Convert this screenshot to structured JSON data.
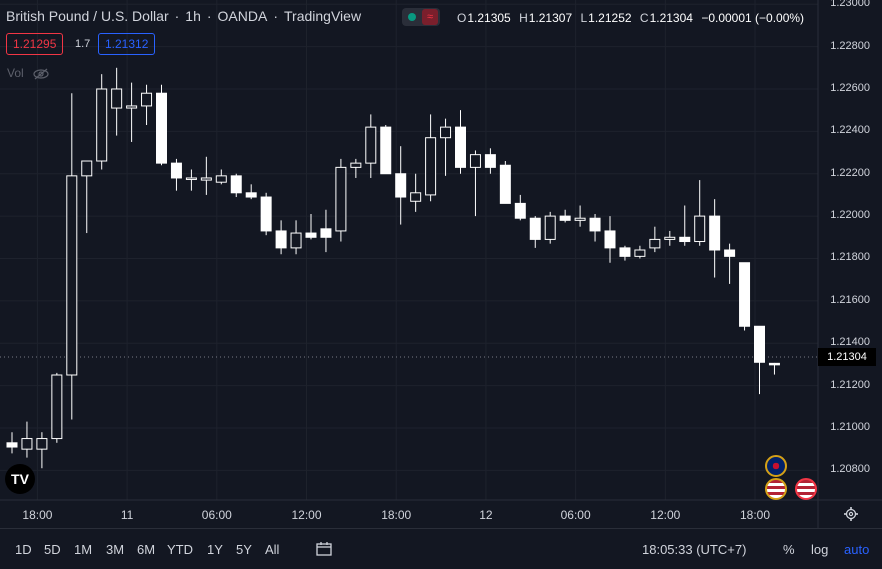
{
  "header": {
    "symbol": "British Pound / U.S. Dollar",
    "sep1": "·",
    "interval": "1h",
    "sep2": "·",
    "broker": "OANDA",
    "sep3": "·",
    "platform": "TradingView",
    "wave_symbol": "≈"
  },
  "ohlc": {
    "o_label": "O",
    "o_value": "1.21305",
    "h_label": "H",
    "h_value": "1.21307",
    "l_label": "L",
    "l_value": "1.21252",
    "c_label": "C",
    "c_value": "1.21304",
    "change": "−0.00001 (−0.00%)"
  },
  "trade": {
    "sell_price": "1.21295",
    "spread": "1.7",
    "buy_price": "1.21312"
  },
  "vol_label": "Vol",
  "price_axis": {
    "labels": [
      "1.23000",
      "1.22800",
      "1.22600",
      "1.22400",
      "1.22200",
      "1.22000",
      "1.21800",
      "1.21600",
      "1.21400",
      "1.21200",
      "1.21000",
      "1.20800"
    ],
    "current": "1.21304"
  },
  "time_axis": [
    "18:00",
    "11",
    "06:00",
    "12:00",
    "18:00",
    "12",
    "06:00",
    "12:00",
    "18:00"
  ],
  "logo_text": "TV",
  "bottom": {
    "ranges": [
      "1D",
      "5D",
      "1M",
      "3M",
      "6M",
      "YTD",
      "1Y",
      "5Y",
      "All"
    ],
    "clock": "18:05:33 (UTC+7)",
    "percent": "%",
    "log": "log",
    "auto": "auto"
  },
  "colors": {
    "background": "#131722",
    "candle": "#ffffff",
    "accent": "#2962ff",
    "sell": "#f23645",
    "live": "#089981"
  },
  "chart_data": {
    "type": "candlestick",
    "ylim": [
      1.2066,
      1.2302
    ],
    "candles": [
      [
        1.2093,
        1.2098,
        1.2088,
        1.2091
      ],
      [
        1.209,
        1.2103,
        1.2086,
        1.2095
      ],
      [
        1.209,
        1.2098,
        1.2081,
        1.2095
      ],
      [
        1.2095,
        1.2126,
        1.2093,
        1.2125
      ],
      [
        1.2125,
        1.2258,
        1.2104,
        1.2219
      ],
      [
        1.2219,
        1.2225,
        1.2192,
        1.2226
      ],
      [
        1.2226,
        1.2267,
        1.2222,
        1.226
      ],
      [
        1.2251,
        1.227,
        1.2238,
        1.226
      ],
      [
        1.2251,
        1.2263,
        1.2235,
        1.2252
      ],
      [
        1.2252,
        1.2262,
        1.2243,
        1.2258
      ],
      [
        1.2258,
        1.2262,
        1.2224,
        1.2225
      ],
      [
        1.2225,
        1.2227,
        1.2212,
        1.2218
      ],
      [
        1.2218,
        1.2222,
        1.2212,
        1.2218
      ],
      [
        1.2217,
        1.2228,
        1.221,
        1.2218
      ],
      [
        1.2216,
        1.2222,
        1.2215,
        1.2219
      ],
      [
        1.2219,
        1.222,
        1.2209,
        1.2211
      ],
      [
        1.2211,
        1.2215,
        1.2208,
        1.2209
      ],
      [
        1.2209,
        1.2211,
        1.2191,
        1.2193
      ],
      [
        1.2193,
        1.2198,
        1.2182,
        1.2185
      ],
      [
        1.2185,
        1.2198,
        1.2182,
        1.2192
      ],
      [
        1.2192,
        1.2201,
        1.2189,
        1.219
      ],
      [
        1.2194,
        1.2203,
        1.2183,
        1.219
      ],
      [
        1.2193,
        1.2227,
        1.2188,
        1.2223
      ],
      [
        1.2223,
        1.2227,
        1.2218,
        1.2225
      ],
      [
        1.2225,
        1.2248,
        1.2218,
        1.2242
      ],
      [
        1.2242,
        1.2243,
        1.222,
        1.222
      ],
      [
        1.222,
        1.2233,
        1.2196,
        1.2209
      ],
      [
        1.2207,
        1.222,
        1.2202,
        1.2211
      ],
      [
        1.221,
        1.2248,
        1.2207,
        1.2237
      ],
      [
        1.2237,
        1.2246,
        1.2219,
        1.2242
      ],
      [
        1.2242,
        1.225,
        1.222,
        1.2223
      ],
      [
        1.2223,
        1.2231,
        1.22,
        1.2229
      ],
      [
        1.2229,
        1.2232,
        1.222,
        1.2223
      ],
      [
        1.2224,
        1.2226,
        1.2207,
        1.2206
      ],
      [
        1.2206,
        1.221,
        1.2198,
        1.2199
      ],
      [
        1.2199,
        1.22,
        1.2185,
        1.2189
      ],
      [
        1.2189,
        1.2202,
        1.2187,
        1.22
      ],
      [
        1.22,
        1.2203,
        1.2197,
        1.2198
      ],
      [
        1.2198,
        1.2205,
        1.2195,
        1.2199
      ],
      [
        1.2199,
        1.2201,
        1.2188,
        1.2193
      ],
      [
        1.2193,
        1.22,
        1.2178,
        1.2185
      ],
      [
        1.2185,
        1.2186,
        1.2179,
        1.2181
      ],
      [
        1.2181,
        1.2186,
        1.218,
        1.2184
      ],
      [
        1.2185,
        1.2195,
        1.2183,
        1.2189
      ],
      [
        1.2189,
        1.2193,
        1.2186,
        1.219
      ],
      [
        1.219,
        1.2205,
        1.2186,
        1.2188
      ],
      [
        1.2188,
        1.2217,
        1.2186,
        1.22
      ],
      [
        1.22,
        1.2208,
        1.2171,
        1.2184
      ],
      [
        1.2184,
        1.2187,
        1.2168,
        1.2181
      ],
      [
        1.2178,
        1.2178,
        1.2146,
        1.2148
      ],
      [
        1.2148,
        1.2148,
        1.2116,
        1.2131
      ],
      [
        1.21305,
        1.21307,
        1.21252,
        1.21304
      ]
    ]
  }
}
